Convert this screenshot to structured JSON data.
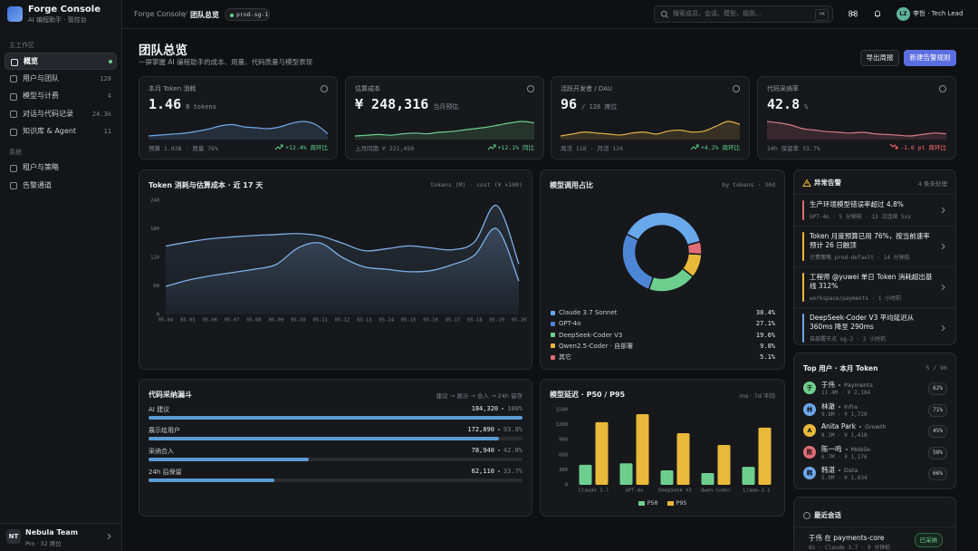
{
  "sidebar": {
    "app_name": "Forge Console",
    "app_subtitle": "AI 编程助手 · 管控台",
    "sections": [
      {
        "title": "主工作区",
        "items": [
          {
            "label": "概览",
            "active": true
          },
          {
            "label": "用户与团队",
            "badge": "128"
          },
          {
            "label": "模型与计费",
            "badge": "4"
          },
          {
            "label": "对话与代码记录",
            "badge": "24.3k"
          },
          {
            "label": "知识库 & Agent",
            "badge": "11"
          }
        ]
      },
      {
        "title": "系统",
        "items": [
          {
            "label": "租户与策略"
          },
          {
            "label": "告警通道"
          }
        ]
      }
    ],
    "team_initials": "NT",
    "team_name": "Nebula Team",
    "plan": "Pro · 32 席位"
  },
  "topbar": {
    "breadcrumb": [
      "Forge Console",
      "团队总览"
    ],
    "env": "prod-sg-1",
    "search_placeholder": "搜索成员、会话、模型、规则…",
    "shortcut": "⌘K",
    "user_initials": "LZ",
    "user": "李哲 · Tech Lead"
  },
  "header": {
    "title": "团队总览",
    "subtitle": "一屏掌握 AI 编程助手的成本、用量、代码质量与模型表现",
    "actions": [
      "导出周报",
      "新建告警规则"
    ]
  },
  "kpis": [
    {
      "label": "本月 Token 消耗",
      "value": 1.46,
      "unit": "B tokens",
      "foot": "预算 1.92B · 用量 76%",
      "delta": "+12.4% 周环比",
      "trend": "up",
      "color": "#6fa8e8",
      "spark": [
        30,
        32,
        34,
        36,
        40,
        45,
        52,
        55,
        50,
        48,
        46,
        50,
        58,
        62,
        55,
        35
      ]
    },
    {
      "label": "估算成本",
      "value": "¥ 248,316",
      "unit": "当月预估",
      "foot": "上月同期 ¥ 221,450",
      "delta": "+12.1% 同比",
      "trend": "up",
      "color": "#6dcf8e",
      "spark": [
        30,
        31,
        32,
        31,
        33,
        34,
        33,
        35,
        36,
        38,
        40,
        42,
        45,
        48,
        50,
        48
      ]
    },
    {
      "label": "活跃开发者 / DAU",
      "value": 96,
      "unit": "/ 128 席位",
      "foot": "周活 118 · 月活 124",
      "delta": "+4.2% 周环比",
      "trend": "up",
      "color": "#e0b54a",
      "spark": [
        40,
        42,
        44,
        43,
        42,
        41,
        43,
        44,
        42,
        45,
        46,
        44,
        45,
        50,
        55,
        52
      ]
    },
    {
      "label": "代码采纳率",
      "value": 42.8,
      "unit": "%",
      "foot": "24h 保留率 33.7%",
      "delta": "-1.6 pt 周环比",
      "trend": "down",
      "color": "#d97a86",
      "spark": [
        60,
        58,
        55,
        50,
        48,
        46,
        45,
        44,
        45,
        43,
        42,
        41,
        40,
        42,
        44,
        43
      ]
    }
  ],
  "token_chart": {
    "type": "area",
    "title": "Token 消耗与估算成本 · 近 17 天",
    "legend": "tokens (M) · cost (¥ ×100)",
    "x": [
      "05-04",
      "05-05",
      "05-06",
      "05-07",
      "05-08",
      "05-09",
      "05-10",
      "05-11",
      "05-12",
      "05-13",
      "05-14",
      "05-15",
      "05-16",
      "05-17",
      "05-18",
      "05-19",
      "05-20"
    ],
    "ylim": [
      0,
      240
    ],
    "yticks": [
      0,
      60,
      120,
      180,
      240
    ],
    "grid": false,
    "series": [
      {
        "color": "#7fb0e6",
        "values": [
          144,
          152,
          159,
          163,
          166,
          168,
          170,
          165,
          150,
          134,
          138,
          144,
          140,
          136,
          153,
          229,
          106
        ]
      },
      {
        "color": "#7fb0e6",
        "values": [
          59,
          72,
          81,
          88,
          95,
          105,
          140,
          150,
          120,
          100,
          95,
          90,
          92,
          105,
          125,
          180,
          70
        ]
      }
    ]
  },
  "model_share": {
    "type": "pie",
    "title": "模型调用占比",
    "subtitle": "by tokens · 30d",
    "categories": [
      "Claude 3.7 Sonnet",
      "GPT-4o",
      "DeepSeek-Coder V3",
      "Qwen2.5-Coder · 自部署",
      "其它"
    ],
    "values": [
      38.4,
      27.1,
      19.6,
      9.8,
      5.1
    ],
    "value_labels": [
      "38.4%",
      "27.1%",
      "19.6%",
      "9.8%",
      "5.1%"
    ],
    "colors": [
      "#6aa8ec",
      "#4e86d6",
      "#6dcf8e",
      "#e8b93a",
      "#e06c75"
    ]
  },
  "alerts": {
    "title": "异常告警",
    "count_label": "4 条未处理",
    "items": [
      {
        "title": "生产环境模型错误率超过 4.8%",
        "meta": "GPT-4o · 5 分钟前 · 13 次连续 5xx",
        "color": "#e06c75"
      },
      {
        "title": "Token 月度预算已用 76%，按当前速率预计 26 日触顶",
        "meta": "计费策略 prod-default · 14 分钟前",
        "color": "#e8b93a"
      },
      {
        "title": "工程师 @yuwei 单日 Token 消耗超出基线 312%",
        "meta": "workspace/payments · 1 小时前",
        "color": "#e8b93a"
      },
      {
        "title": "DeepSeek-Coder V3 平均延迟从 360ms 降至 290ms",
        "meta": "自部署节点 sg-2 · 2 小时前",
        "color": "#6aa8ec"
      }
    ]
  },
  "top_users": {
    "title": "Top 用户 · 本月 Token",
    "count_label": "5 / 96",
    "users": [
      {
        "avatar": "于",
        "name": "于伟",
        "team": "Payments",
        "usage": "11.4M · ¥ 2,184",
        "rate": "62%",
        "color": "#6dcf8e"
      },
      {
        "avatar": "林",
        "name": "林澈",
        "team": "Infra",
        "usage": "9.8M · ¥ 1,720",
        "rate": "71%",
        "color": "#6aa8ec"
      },
      {
        "avatar": "A",
        "name": "Anita Park",
        "team": "Growth",
        "usage": "8.1M · ¥ 1,418",
        "rate": "45%",
        "color": "#e8b93a"
      },
      {
        "avatar": "陈",
        "name": "陈一鸣",
        "team": "Mobile",
        "usage": "6.7M · ¥ 1,176",
        "rate": "58%",
        "color": "#e06c75"
      },
      {
        "avatar": "韩",
        "name": "韩湛",
        "team": "Data",
        "usage": "5.9M · ¥ 1,034",
        "rate": "66%",
        "color": "#6aa8ec"
      }
    ]
  },
  "recent": {
    "title": "最近会话",
    "items": [
      {
        "text": "于伟 在 payments-core",
        "meta": "6s · Claude 3.7 · 9 分钟前",
        "status": "已采纳"
      }
    ]
  },
  "funnel": {
    "title": "代码采纳漏斗",
    "subtitle": "建议 → 展示 → 合入 → 24h 留存",
    "rows": [
      {
        "label": "AI 建议",
        "count": "184,320",
        "pct": 100,
        "pct_label": "100%"
      },
      {
        "label": "展示给用户",
        "count": "172,890",
        "pct": 93.8,
        "pct_label": "93.8%"
      },
      {
        "label": "采纳合入",
        "count": "78,940",
        "pct": 42.8,
        "pct_label": "42.8%"
      },
      {
        "label": "24h 后保留",
        "count": "62,110",
        "pct": 33.7,
        "pct_label": "33.7%"
      }
    ],
    "color": "#5b9bd5"
  },
  "latency": {
    "type": "bar",
    "title": "模型延迟 · P50 / P95",
    "subtitle": "ms · 7d 平均",
    "categories": [
      "Claude 3.7",
      "GPT-4o",
      "DeepSeek V3",
      "Qwen-Coder",
      "Llama-3.1"
    ],
    "ylim": [
      0,
      1500
    ],
    "yticks": [
      0,
      300,
      600,
      900,
      1200,
      1500
    ],
    "series": [
      {
        "name": "P50",
        "color": "#6dcf8e",
        "values": [
          400,
          430,
          290,
          235,
          360
        ]
      },
      {
        "name": "P95",
        "color": "#e8b93a",
        "values": [
          1250,
          1410,
          1030,
          795,
          1140
        ]
      }
    ]
  }
}
